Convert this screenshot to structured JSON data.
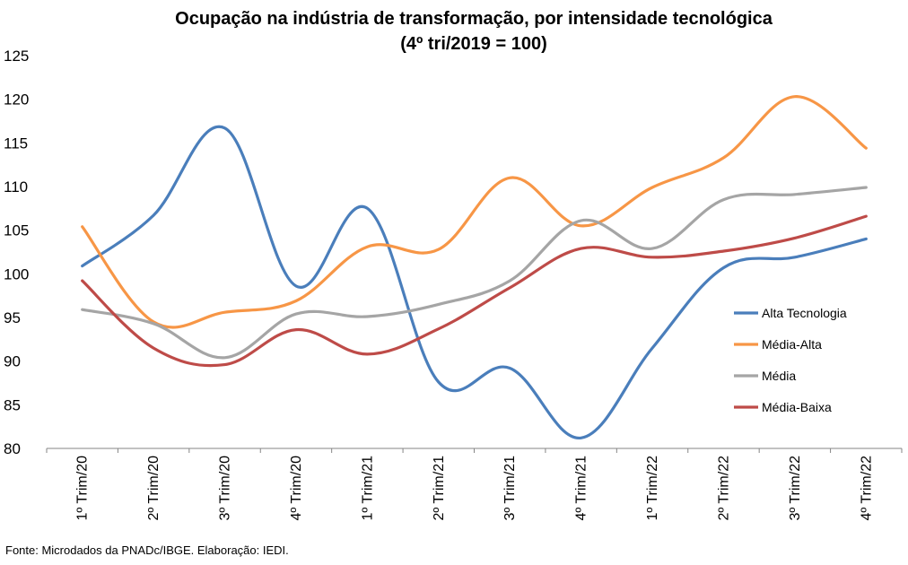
{
  "chart_data": {
    "type": "line",
    "title": "Ocupação na indústria de transformação, por intensidade tecnológica",
    "subtitle": "(4º tri/2019 = 100)",
    "xlabel": "",
    "ylabel": "",
    "ylim": [
      80,
      125
    ],
    "ytick_step": 5,
    "grid": false,
    "legend_position": "right",
    "categories": [
      "1º Trim/20",
      "2º Trim/20",
      "3º Trim/20",
      "4º Trim/20",
      "1º Trim/21",
      "2º Trim/21",
      "3º Trim/21",
      "4º Trim/21",
      "1º Trim/22",
      "2º Trim/22",
      "3º Trim/22",
      "4º Trim/22"
    ],
    "series": [
      {
        "name": "Alta Tecnologia",
        "color": "#4a7ebb",
        "values": [
          100.9,
          106.7,
          116.7,
          98.6,
          107.5,
          87.6,
          89.2,
          81.2,
          91.5,
          100.7,
          101.9,
          104.0
        ]
      },
      {
        "name": "Média-Alta",
        "color": "#f79646",
        "values": [
          105.4,
          94.5,
          95.6,
          96.9,
          103.1,
          102.8,
          111.0,
          105.5,
          109.9,
          113.3,
          120.3,
          114.4
        ]
      },
      {
        "name": "Média",
        "color": "#a5a5a5",
        "values": [
          95.9,
          94.3,
          90.4,
          95.4,
          95.1,
          96.5,
          99.2,
          106.1,
          102.9,
          108.5,
          109.1,
          109.9
        ]
      },
      {
        "name": "Média-Baixa",
        "color": "#be4b48",
        "values": [
          99.2,
          91.5,
          89.6,
          93.6,
          90.8,
          93.7,
          98.4,
          102.9,
          101.9,
          102.6,
          104.1,
          106.6
        ]
      }
    ]
  },
  "source_note": "Fonte: Microdados da PNADc/IBGE. Elaboração: IEDI."
}
